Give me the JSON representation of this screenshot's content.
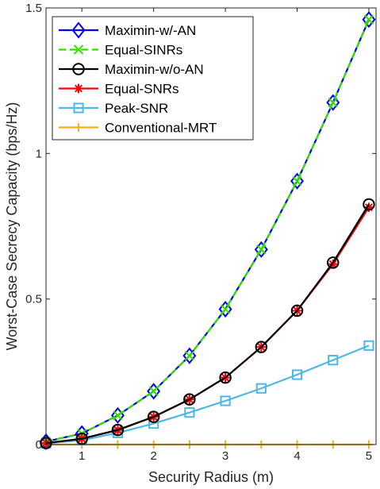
{
  "chart_data": {
    "type": "line",
    "xlabel": "Security Radius (m)",
    "ylabel": "Worst-Case Secrecy Capacity (bps/Hz)",
    "xlim": [
      0.5,
      5.1
    ],
    "ylim": [
      0,
      1.5
    ],
    "xticks": [
      1,
      2,
      3,
      4,
      5
    ],
    "xtick_labels": [
      "1",
      "2",
      "3",
      "4",
      "5"
    ],
    "yticks": [
      0,
      0.5,
      1,
      1.5
    ],
    "ytick_labels": [
      "0",
      "0.5",
      "1",
      "1.5"
    ],
    "grid": false,
    "legend_position": "top-left",
    "x": [
      0.5,
      1,
      1.5,
      2,
      2.5,
      3,
      3.5,
      4,
      4.5,
      5
    ],
    "series": [
      {
        "name": "Maximin-w/-AN",
        "color": "#0000ff",
        "marker": "diamond",
        "dash": "solid",
        "values": [
          0.01,
          0.038,
          0.1,
          0.183,
          0.305,
          0.465,
          0.67,
          0.905,
          1.175,
          1.46
        ]
      },
      {
        "name": "Equal-SINRs",
        "color": "#33dd00",
        "marker": "x",
        "dash": "dashed",
        "values": [
          0.01,
          0.038,
          0.1,
          0.183,
          0.305,
          0.465,
          0.67,
          0.905,
          1.175,
          1.46
        ]
      },
      {
        "name": "Maximin-w/o-AN",
        "color": "#000000",
        "marker": "circle",
        "dash": "solid",
        "values": [
          0.005,
          0.02,
          0.05,
          0.095,
          0.155,
          0.23,
          0.335,
          0.46,
          0.625,
          0.825
        ]
      },
      {
        "name": "Equal-SNRs",
        "color": "#ff0000",
        "marker": "asterisk",
        "dash": "solid",
        "values": [
          0.005,
          0.02,
          0.05,
          0.095,
          0.155,
          0.23,
          0.335,
          0.46,
          0.62,
          0.815
        ]
      },
      {
        "name": "Peak-SNR",
        "color": "#4db8e8",
        "marker": "square",
        "dash": "solid",
        "values": [
          0.004,
          0.015,
          0.04,
          0.072,
          0.11,
          0.15,
          0.193,
          0.24,
          0.29,
          0.34
        ]
      },
      {
        "name": "Conventional-MRT",
        "color": "#edb120",
        "marker": "plus",
        "dash": "solid",
        "values": [
          0,
          0,
          0,
          0,
          0,
          0,
          0,
          0,
          0,
          0
        ]
      }
    ]
  }
}
